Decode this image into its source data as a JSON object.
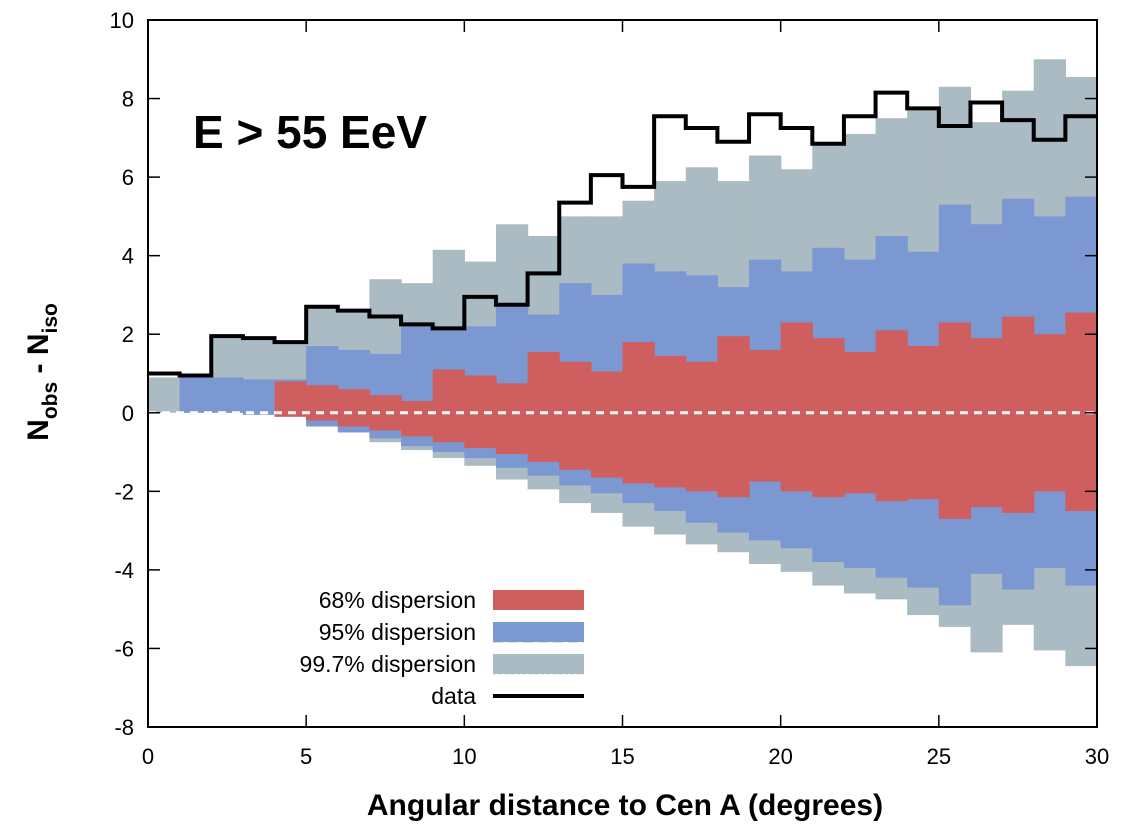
{
  "chart_data": {
    "type": "area",
    "annotation": "E > 55 EeV",
    "xlabel": "Angular distance to Cen A (degrees)",
    "ylabel": {
      "main": "N",
      "sub1": "obs",
      "sep": " - ",
      "main2": "N",
      "sub2": "iso"
    },
    "xlim": [
      0,
      30
    ],
    "ylim": [
      -8,
      10
    ],
    "x_ticks": [
      0,
      5,
      10,
      15,
      20,
      25,
      30
    ],
    "y_ticks": [
      -8,
      -6,
      -4,
      -2,
      0,
      2,
      4,
      6,
      8,
      10
    ],
    "grid": false,
    "legend_position": "bottom-left",
    "bin_edges": [
      0,
      1,
      2,
      3,
      4,
      5,
      6,
      7,
      8,
      9,
      10,
      11,
      12,
      13,
      14,
      15,
      16,
      17,
      18,
      19,
      20,
      21,
      22,
      23,
      24,
      25,
      26,
      27,
      28,
      29,
      30
    ],
    "series": [
      {
        "name": "99.7% dispersion",
        "color": "#abbbc3",
        "upper": [
          0.9,
          0.9,
          1.9,
          1.85,
          1.8,
          2.7,
          2.6,
          3.4,
          3.3,
          4.15,
          3.85,
          4.8,
          4.5,
          5.0,
          5.0,
          5.4,
          5.9,
          6.25,
          5.9,
          6.55,
          6.2,
          6.9,
          7.1,
          7.5,
          7.7,
          8.3,
          7.4,
          8.2,
          9.0,
          8.55
        ],
        "lower": [
          0,
          0,
          0,
          -0.05,
          -0.1,
          -0.35,
          -0.5,
          -0.75,
          -0.95,
          -1.15,
          -1.35,
          -1.7,
          -1.95,
          -2.3,
          -2.55,
          -2.9,
          -3.1,
          -3.35,
          -3.55,
          -3.85,
          -4.05,
          -4.4,
          -4.6,
          -4.75,
          -5.15,
          -5.45,
          -6.1,
          -5.4,
          -6.05,
          -6.45
        ]
      },
      {
        "name": "95% dispersion",
        "color": "#7b98d2",
        "upper": [
          0,
          0.9,
          0.9,
          0.85,
          0.85,
          1.7,
          1.6,
          1.5,
          2.2,
          2.1,
          2.2,
          2.7,
          2.5,
          3.3,
          3.0,
          3.8,
          3.6,
          3.5,
          3.2,
          3.9,
          3.6,
          4.2,
          3.9,
          4.5,
          4.1,
          5.3,
          4.8,
          5.45,
          5.0,
          5.5
        ],
        "lower": [
          0,
          0,
          0,
          -0.05,
          -0.1,
          -0.35,
          -0.5,
          -0.65,
          -0.85,
          -1.0,
          -1.15,
          -1.4,
          -1.6,
          -1.85,
          -2.05,
          -2.3,
          -2.5,
          -2.8,
          -3.05,
          -3.25,
          -3.45,
          -3.8,
          -3.95,
          -4.2,
          -4.45,
          -4.9,
          -4.1,
          -4.5,
          -3.95,
          -4.4
        ]
      },
      {
        "name": "68% dispersion",
        "color": "#cf5f5f",
        "upper": [
          0,
          0,
          0,
          0,
          0.8,
          0.7,
          0.6,
          0.45,
          0.3,
          1.1,
          0.95,
          0.75,
          1.55,
          1.3,
          1.05,
          1.8,
          1.45,
          1.3,
          1.95,
          1.6,
          2.3,
          1.9,
          1.55,
          2.1,
          1.7,
          2.3,
          1.9,
          2.45,
          2.0,
          2.55
        ],
        "lower": [
          0,
          0,
          0,
          0,
          -0.1,
          -0.2,
          -0.35,
          -0.45,
          -0.6,
          -0.75,
          -0.9,
          -1.05,
          -1.25,
          -1.45,
          -1.65,
          -1.8,
          -1.9,
          -2.0,
          -2.15,
          -1.75,
          -2.0,
          -2.15,
          -2.05,
          -2.25,
          -2.2,
          -2.7,
          -2.4,
          -2.55,
          -2.0,
          -2.5
        ]
      }
    ],
    "data_series": {
      "name": "data",
      "color": "#000000",
      "values": [
        1.0,
        0.95,
        1.95,
        1.9,
        1.8,
        2.7,
        2.6,
        2.45,
        2.25,
        2.15,
        2.95,
        2.75,
        3.55,
        5.35,
        6.05,
        5.75,
        7.55,
        7.25,
        6.9,
        7.6,
        7.25,
        6.85,
        7.55,
        8.15,
        7.75,
        7.3,
        7.9,
        7.45,
        6.95,
        7.55
      ]
    },
    "isotropic_line": {
      "y": 0,
      "color": "#ffffff"
    },
    "legend": [
      {
        "label": "68% dispersion",
        "color": "#cf5f5f",
        "dash": "none"
      },
      {
        "label": "95% dispersion",
        "color": "#7b98d2",
        "dash": "dashed"
      },
      {
        "label": "99.7% dispersion",
        "color": "#abbbc3",
        "dash": "dotted"
      },
      {
        "label": "data",
        "color": "#000000",
        "dash": "line"
      }
    ]
  }
}
